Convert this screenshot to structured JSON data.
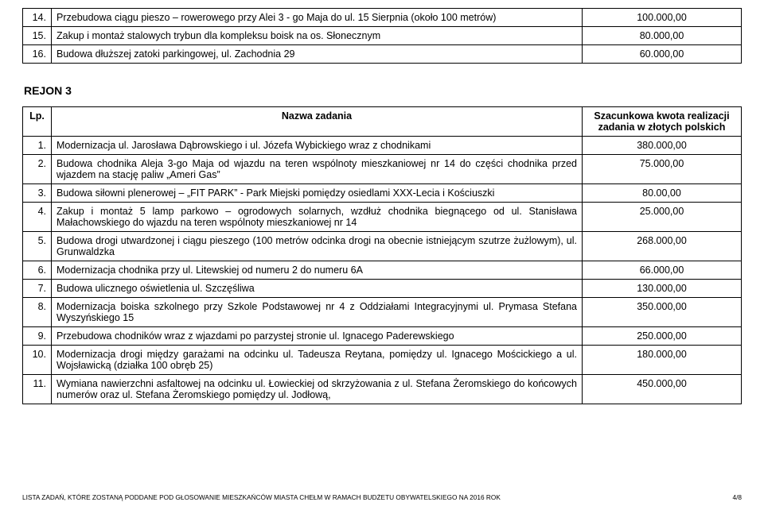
{
  "top_table_rows": [
    {
      "lp": "14.",
      "name": "Przebudowa ciągu pieszo – rowerowego przy Alei 3 - go Maja do ul. 15 Sierpnia (około 100 metrów)",
      "value": "100.000,00"
    },
    {
      "lp": "15.",
      "name": "Zakup i montaż stalowych trybun dla kompleksu boisk na os. Słonecznym",
      "value": "80.000,00"
    },
    {
      "lp": "16.",
      "name": "Budowa dłuższej zatoki parkingowej, ul. Zachodnia 29",
      "value": "60.000,00"
    }
  ],
  "section_heading": "REJON 3",
  "columns": {
    "lp": "Lp.",
    "name": "Nazwa zadania",
    "value": "Szacunkowa kwota realizacji zadania w złotych polskich"
  },
  "region_rows": [
    {
      "lp": "1.",
      "name": "Modernizacja ul. Jarosława Dąbrowskiego i ul. Józefa Wybickiego wraz z chodnikami",
      "value": "380.000,00"
    },
    {
      "lp": "2.",
      "name": "Budowa chodnika Aleja 3-go Maja od wjazdu na teren wspólnoty mieszkaniowej nr 14 do części chodnika przed wjazdem na stację paliw „Ameri Gas”",
      "value": "75.000,00"
    },
    {
      "lp": "3.",
      "name": "Budowa siłowni plenerowej – „FIT PARK” - Park Miejski pomiędzy osiedlami XXX-Lecia i Kościuszki",
      "value": "80.00,00"
    },
    {
      "lp": "4.",
      "name": "Zakup i montaż 5 lamp parkowo – ogrodowych solarnych, wzdłuż chodnika biegnącego od ul. Stanisława Małachowskiego do wjazdu na teren wspólnoty mieszkaniowej nr 14",
      "value": "25.000,00"
    },
    {
      "lp": "5.",
      "name": "Budowa drogi utwardzonej i ciągu pieszego (100 metrów odcinka drogi na obecnie istniejącym szutrze żużlowym), ul. Grunwaldzka",
      "value": "268.000,00"
    },
    {
      "lp": "6.",
      "name": "Modernizacja chodnika przy ul. Litewskiej od numeru 2 do numeru 6A",
      "value": "66.000,00"
    },
    {
      "lp": "7.",
      "name": "Budowa ulicznego oświetlenia ul. Szczęśliwa",
      "value": "130.000,00"
    },
    {
      "lp": "8.",
      "name": "Modernizacja boiska szkolnego przy Szkole Podstawowej nr 4 z Oddziałami Integracyjnymi ul. Prymasa Stefana Wyszyńskiego 15",
      "value": "350.000,00"
    },
    {
      "lp": "9.",
      "name": "Przebudowa chodników wraz z wjazdami po parzystej stronie ul. Ignacego Paderewskiego",
      "value": "250.000,00"
    },
    {
      "lp": "10.",
      "name": "Modernizacja drogi między garażami na odcinku ul. Tadeusza Reytana, pomiędzy ul. Ignacego Mościckiego a ul. Wojsławicką (działka 100 obręb 25)",
      "value": "180.000,00"
    },
    {
      "lp": "11.",
      "name": "Wymiana nawierzchni asfaltowej na odcinku ul. Łowieckiej od skrzyżowania z ul. Stefana Żeromskiego do końcowych numerów oraz ul. Stefana Żeromskiego pomiędzy ul. Jodłową,",
      "value": "450.000,00"
    }
  ],
  "footer": {
    "text": "LISTA ZADAŃ, KTÓRE ZOSTANĄ PODDANE POD GŁOSOWANIE MIESZKAŃCÓW MIASTA CHEŁM  W RAMACH BUDŻETU OBYWATELSKIEGO NA 2016 ROK",
    "page": "4/8"
  }
}
